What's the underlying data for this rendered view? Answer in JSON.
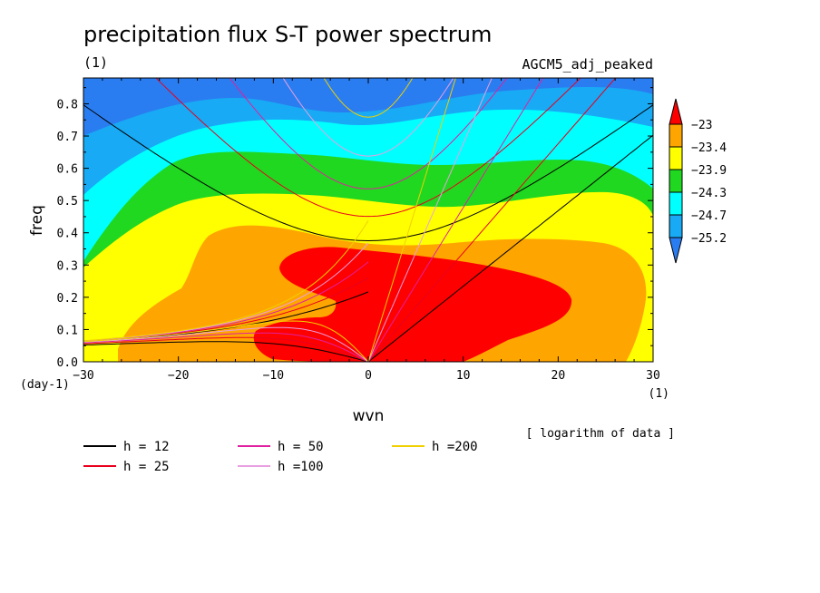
{
  "chart_data": {
    "type": "contour",
    "title": "precipitation flux S-T power spectrum",
    "units": "(1)",
    "run_label": "AGCM5_adj_peaked",
    "xlabel": "wvn",
    "ylabel": "freq",
    "x_units": "(1)",
    "y_units": "(day-1)",
    "xlim": [
      -30,
      30
    ],
    "ylim": [
      0,
      0.88
    ],
    "xticks": [
      -30,
      -20,
      -10,
      0,
      10,
      20,
      30
    ],
    "yticks": [
      0.0,
      0.1,
      0.2,
      0.3,
      0.4,
      0.5,
      0.6,
      0.7,
      0.8
    ],
    "note": "[ logarithm of data ]",
    "colorbar": {
      "levels": [
        -25.2,
        -24.7,
        -24.3,
        -23.9,
        -23.4,
        -23.0
      ],
      "level_labels": [
        "-25.2",
        "-24.7",
        "-24.3",
        "-23.9",
        "-23.4",
        "-23"
      ],
      "colors": [
        "#2a7df0",
        "#18aaf5",
        "#00ffff",
        "#20d820",
        "#ffff00",
        "#ffa500",
        "#ff0000"
      ]
    },
    "dispersion_curves": [
      {
        "label": "h = 12",
        "h": 12,
        "color": "#000000"
      },
      {
        "label": "h = 25",
        "h": 25,
        "color": "#e8001e"
      },
      {
        "label": "h = 50",
        "h": 50,
        "color": "#e020a0"
      },
      {
        "label": "h =100",
        "h": 100,
        "color": "#e8a0e0"
      },
      {
        "label": "h =200",
        "h": 200,
        "color": "#f0d000"
      }
    ]
  }
}
